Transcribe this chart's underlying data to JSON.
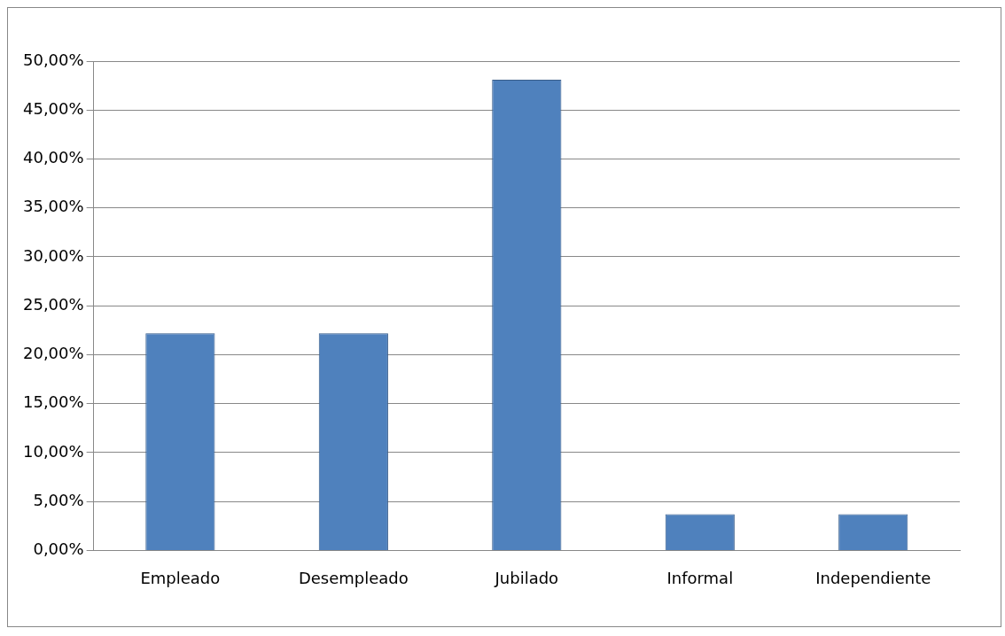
{
  "chart_data": {
    "type": "bar",
    "categories": [
      "Empleado",
      "Desempleado",
      "Jubilado",
      "Informal",
      "Independiente"
    ],
    "values": [
      22.2,
      22.2,
      48.1,
      3.7,
      3.7
    ],
    "color": "#4f81bd",
    "ylim": [
      0,
      50
    ],
    "yticks": [
      {
        "value": 0,
        "label": "0,00%"
      },
      {
        "value": 5,
        "label": "5,00%"
      },
      {
        "value": 10,
        "label": "10,00%"
      },
      {
        "value": 15,
        "label": "15,00%"
      },
      {
        "value": 20,
        "label": "20,00%"
      },
      {
        "value": 25,
        "label": "25,00%"
      },
      {
        "value": 30,
        "label": "30,00%"
      },
      {
        "value": 35,
        "label": "35,00%"
      },
      {
        "value": 40,
        "label": "40,00%"
      },
      {
        "value": 45,
        "label": "45,00%"
      },
      {
        "value": 50,
        "label": "50,00%"
      }
    ],
    "grid": "y",
    "legend": false
  }
}
